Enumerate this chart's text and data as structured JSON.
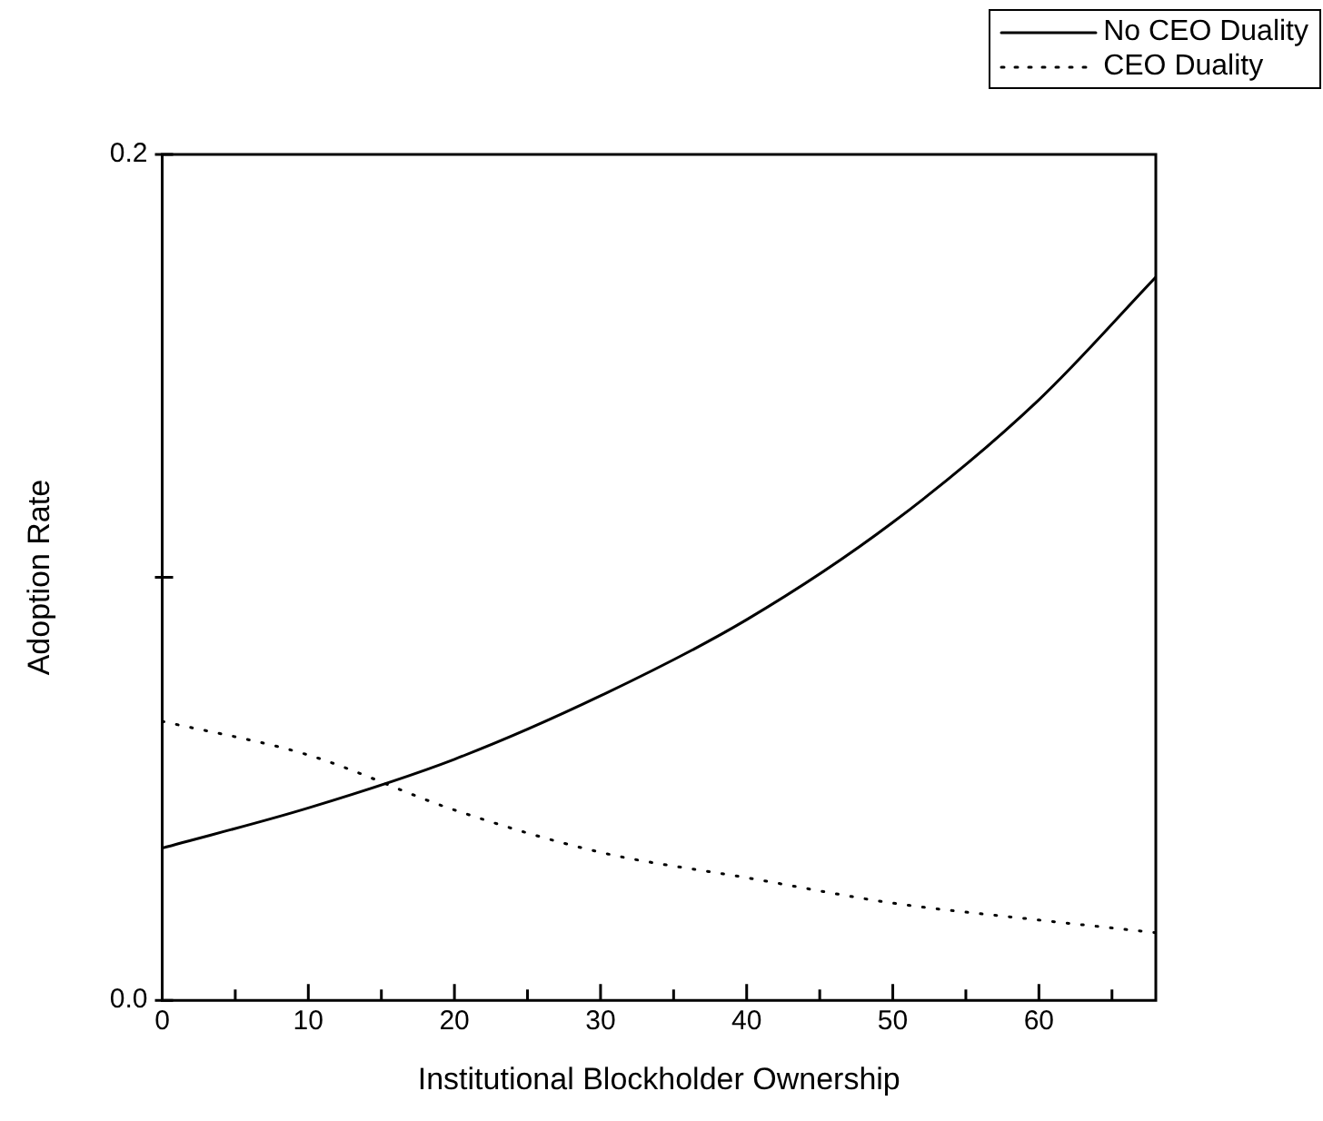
{
  "chart_data": {
    "type": "line",
    "xlabel": "Institutional Blockholder Ownership",
    "ylabel": "Adoption Rate",
    "x": [
      0,
      10,
      20,
      30,
      40,
      50,
      60,
      68
    ],
    "series": [
      {
        "name": "No CEO Duality",
        "color": "#000000",
        "line_style": "solid",
        "values": [
          0.036,
          0.0455,
          0.057,
          0.072,
          0.09,
          0.113,
          0.142,
          0.171
        ]
      },
      {
        "name": "CEO Duality",
        "color": "#000000",
        "line_style": "dotted",
        "values": [
          0.066,
          0.058,
          0.045,
          0.035,
          0.029,
          0.023,
          0.019,
          0.016
        ]
      }
    ],
    "xlim": [
      0,
      68
    ],
    "ylim": [
      0,
      0.2
    ],
    "xticks": [
      0,
      {
        "value": 5,
        "label": null
      },
      10,
      {
        "value": 15,
        "label": null
      },
      20,
      {
        "value": 25,
        "label": null
      },
      30,
      {
        "value": 35,
        "label": null
      },
      40,
      {
        "value": 45,
        "label": null
      },
      50,
      {
        "value": 55,
        "label": null
      },
      60,
      {
        "value": 65,
        "label": null
      }
    ],
    "yticks": [
      {
        "value": 0,
        "label": "0.0"
      },
      {
        "value": 0.1,
        "label": null
      },
      {
        "value": 0.2,
        "label": "0.2"
      }
    ],
    "grid": false,
    "legend": "top right",
    "marker": "none"
  }
}
